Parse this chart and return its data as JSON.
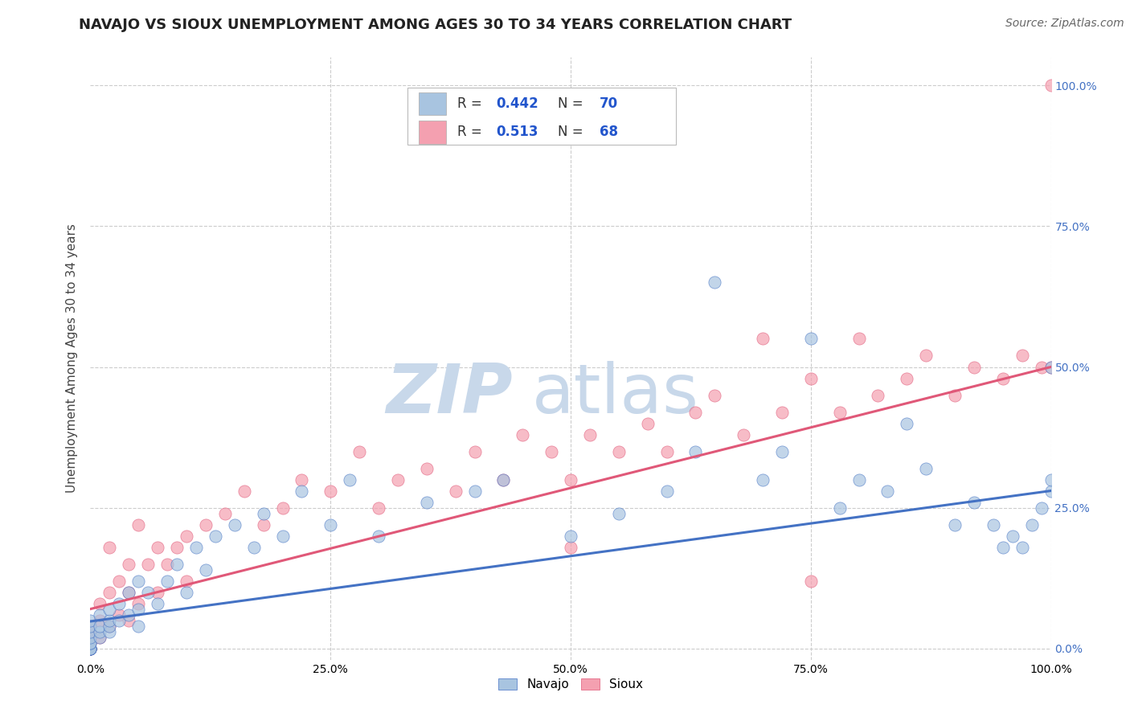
{
  "title": "NAVAJO VS SIOUX UNEMPLOYMENT AMONG AGES 30 TO 34 YEARS CORRELATION CHART",
  "source": "Source: ZipAtlas.com",
  "ylabel": "Unemployment Among Ages 30 to 34 years",
  "xlim": [
    0.0,
    1.0
  ],
  "ylim": [
    -0.02,
    1.05
  ],
  "x_tick_labels": [
    "0.0%",
    "25.0%",
    "50.0%",
    "75.0%",
    "100.0%"
  ],
  "x_tick_vals": [
    0.0,
    0.25,
    0.5,
    0.75,
    1.0
  ],
  "y_tick_vals": [
    0.0,
    0.25,
    0.5,
    0.75,
    1.0
  ],
  "right_tick_labels": [
    "0.0%",
    "25.0%",
    "50.0%",
    "75.0%",
    "100.0%"
  ],
  "navajo_R": 0.442,
  "navajo_N": 70,
  "sioux_R": 0.513,
  "sioux_N": 68,
  "navajo_color": "#a8c4e0",
  "sioux_color": "#f4a0b0",
  "navajo_line_color": "#4472c4",
  "sioux_line_color": "#e05878",
  "legend_color": "#2255cc",
  "watermark_zip": "ZIP",
  "watermark_atlas": "atlas",
  "watermark_color": "#c8d8ea",
  "background_color": "#ffffff",
  "navajo_scatter_x": [
    0.0,
    0.0,
    0.0,
    0.0,
    0.0,
    0.0,
    0.0,
    0.0,
    0.0,
    0.0,
    0.0,
    0.0,
    0.01,
    0.01,
    0.01,
    0.01,
    0.02,
    0.02,
    0.02,
    0.02,
    0.03,
    0.03,
    0.04,
    0.04,
    0.05,
    0.05,
    0.05,
    0.06,
    0.07,
    0.08,
    0.09,
    0.1,
    0.11,
    0.12,
    0.13,
    0.15,
    0.17,
    0.18,
    0.2,
    0.22,
    0.25,
    0.27,
    0.3,
    0.35,
    0.4,
    0.43,
    0.5,
    0.55,
    0.6,
    0.63,
    0.65,
    0.7,
    0.72,
    0.75,
    0.78,
    0.8,
    0.83,
    0.85,
    0.87,
    0.9,
    0.92,
    0.94,
    0.95,
    0.96,
    0.97,
    0.98,
    0.99,
    1.0,
    1.0,
    1.0
  ],
  "navajo_scatter_y": [
    0.0,
    0.0,
    0.0,
    0.0,
    0.0,
    0.0,
    0.01,
    0.01,
    0.02,
    0.03,
    0.04,
    0.05,
    0.02,
    0.03,
    0.04,
    0.06,
    0.03,
    0.04,
    0.05,
    0.07,
    0.05,
    0.08,
    0.06,
    0.1,
    0.04,
    0.07,
    0.12,
    0.1,
    0.08,
    0.12,
    0.15,
    0.1,
    0.18,
    0.14,
    0.2,
    0.22,
    0.18,
    0.24,
    0.2,
    0.28,
    0.22,
    0.3,
    0.2,
    0.26,
    0.28,
    0.3,
    0.2,
    0.24,
    0.28,
    0.35,
    0.65,
    0.3,
    0.35,
    0.55,
    0.25,
    0.3,
    0.28,
    0.4,
    0.32,
    0.22,
    0.26,
    0.22,
    0.18,
    0.2,
    0.18,
    0.22,
    0.25,
    0.28,
    0.3,
    0.5
  ],
  "sioux_scatter_x": [
    0.0,
    0.0,
    0.0,
    0.0,
    0.0,
    0.0,
    0.0,
    0.01,
    0.01,
    0.01,
    0.02,
    0.02,
    0.03,
    0.03,
    0.04,
    0.04,
    0.04,
    0.05,
    0.06,
    0.07,
    0.07,
    0.08,
    0.09,
    0.1,
    0.12,
    0.14,
    0.16,
    0.18,
    0.2,
    0.22,
    0.25,
    0.28,
    0.3,
    0.32,
    0.35,
    0.38,
    0.4,
    0.43,
    0.45,
    0.48,
    0.5,
    0.52,
    0.55,
    0.58,
    0.6,
    0.63,
    0.65,
    0.68,
    0.7,
    0.72,
    0.75,
    0.78,
    0.8,
    0.82,
    0.85,
    0.87,
    0.9,
    0.92,
    0.95,
    0.97,
    0.99,
    1.0,
    0.02,
    0.05,
    0.1,
    0.5,
    0.75,
    1.0
  ],
  "sioux_scatter_y": [
    0.0,
    0.0,
    0.0,
    0.01,
    0.02,
    0.03,
    0.04,
    0.02,
    0.05,
    0.08,
    0.04,
    0.1,
    0.06,
    0.12,
    0.05,
    0.1,
    0.15,
    0.08,
    0.15,
    0.1,
    0.18,
    0.15,
    0.18,
    0.2,
    0.22,
    0.24,
    0.28,
    0.22,
    0.25,
    0.3,
    0.28,
    0.35,
    0.25,
    0.3,
    0.32,
    0.28,
    0.35,
    0.3,
    0.38,
    0.35,
    0.3,
    0.38,
    0.35,
    0.4,
    0.35,
    0.42,
    0.45,
    0.38,
    0.55,
    0.42,
    0.48,
    0.42,
    0.55,
    0.45,
    0.48,
    0.52,
    0.45,
    0.5,
    0.48,
    0.52,
    0.5,
    0.5,
    0.18,
    0.22,
    0.12,
    0.18,
    0.12,
    1.0
  ],
  "navajo_trend_x": [
    0.0,
    1.0
  ],
  "navajo_trend_y": [
    0.048,
    0.28
  ],
  "sioux_trend_x": [
    0.0,
    1.0
  ],
  "sioux_trend_y": [
    0.07,
    0.5
  ],
  "grid_color": "#cccccc",
  "title_fontsize": 13,
  "label_fontsize": 11,
  "tick_fontsize": 10,
  "source_fontsize": 10
}
